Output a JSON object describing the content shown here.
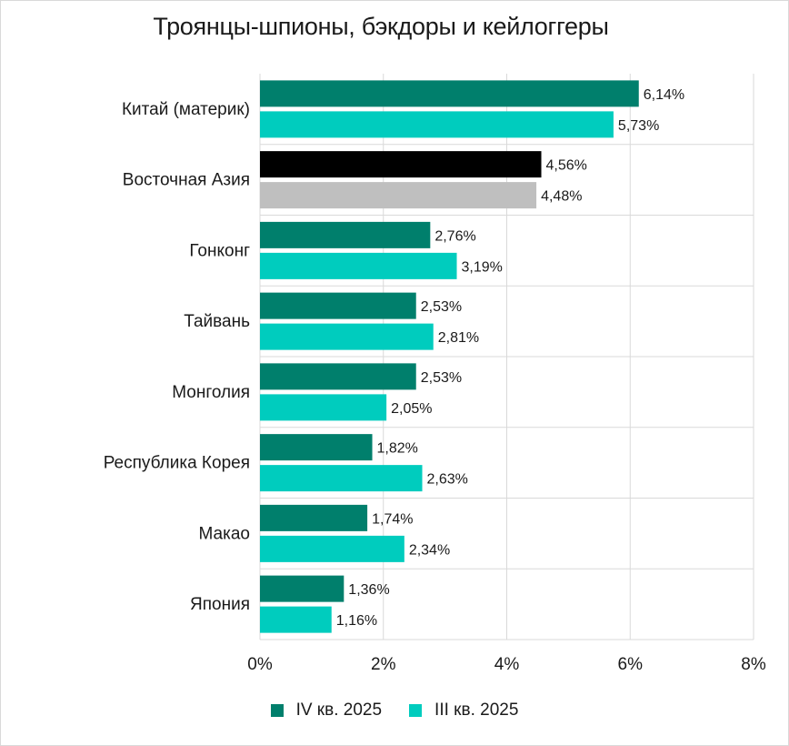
{
  "chart_data": {
    "type": "bar",
    "orientation": "horizontal",
    "title": "Троянцы-шпионы, бэкдоры и кейлоггеры",
    "categories": [
      "Китай (материк)",
      "Восточная Азия",
      "Гонконг",
      "Тайвань",
      "Монголия",
      "Республика Корея",
      "Макао",
      "Япония"
    ],
    "series": [
      {
        "name": "IV кв. 2025",
        "color": "#007f6c",
        "values": [
          6.14,
          4.56,
          2.76,
          2.53,
          2.53,
          1.82,
          1.74,
          1.36
        ],
        "labels": [
          "6,14%",
          "4,56%",
          "2,76%",
          "2,53%",
          "2,53%",
          "1,82%",
          "1,74%",
          "1,36%"
        ]
      },
      {
        "name": "III кв. 2025",
        "color": "#00ccbe",
        "values": [
          5.73,
          4.48,
          3.19,
          2.81,
          2.05,
          2.63,
          2.34,
          1.16
        ],
        "labels": [
          "5,73%",
          "4,48%",
          "3,19%",
          "2,81%",
          "2,05%",
          "2,63%",
          "2,34%",
          "1,16%"
        ]
      }
    ],
    "highlight": {
      "category_index": 1,
      "colors": [
        "#000000",
        "#bfbfbf"
      ]
    },
    "xlim": [
      0,
      8
    ],
    "xticks": [
      0,
      2,
      4,
      6,
      8
    ],
    "xtick_labels": [
      "0%",
      "2%",
      "4%",
      "6%",
      "8%"
    ],
    "grid": true,
    "legend_position": "bottom"
  }
}
